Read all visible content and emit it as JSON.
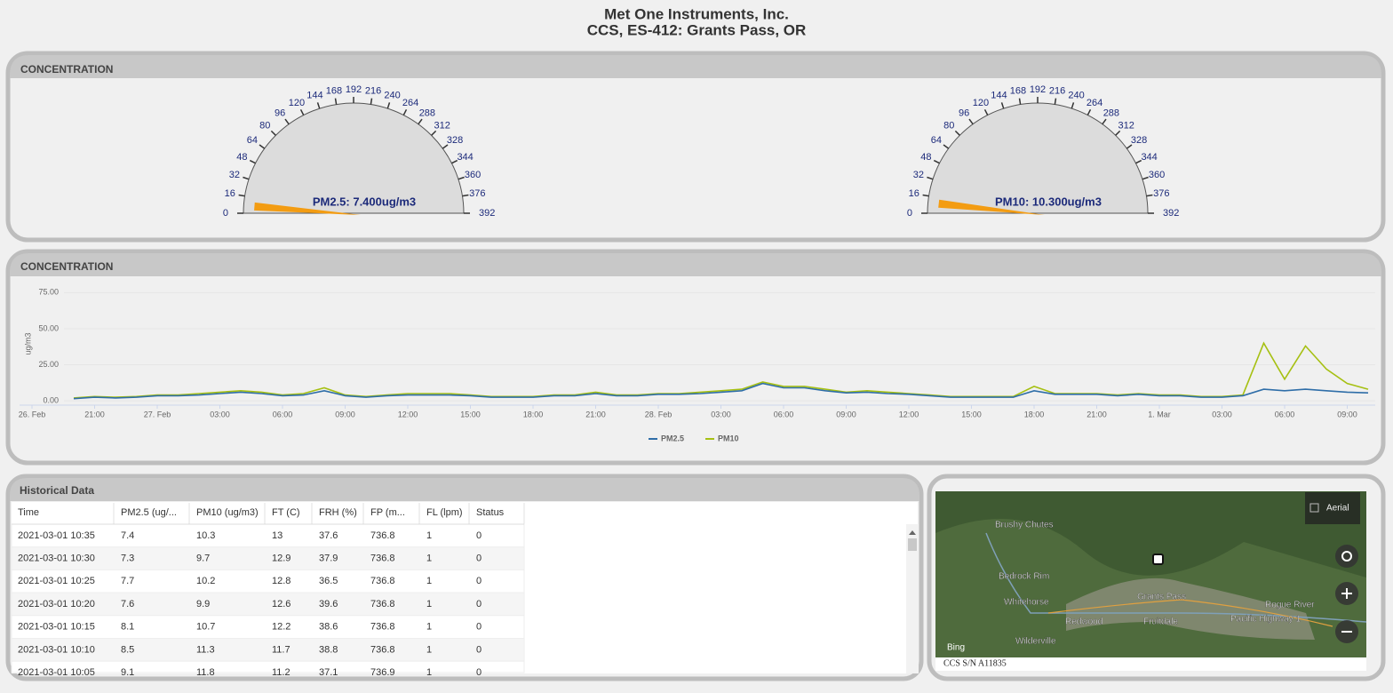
{
  "header": {
    "title": "Met One Instruments, Inc.",
    "subtitle": "CCS, ES-412: Grants Pass, OR"
  },
  "gauges_panel": {
    "title": "CONCENTRATION",
    "gauges": [
      {
        "label": "PM2.5: 7.400ug/m3",
        "value": 7.4,
        "color": "#f39c12",
        "ticks": [
          0,
          16,
          32,
          48,
          64,
          80,
          96,
          120,
          144,
          168,
          192,
          216,
          240,
          264,
          288,
          312,
          328,
          344,
          360,
          376,
          392
        ]
      },
      {
        "label": "PM10: 10.300ug/m3",
        "value": 10.3,
        "color": "#f39c12",
        "ticks": [
          0,
          16,
          32,
          48,
          64,
          80,
          96,
          120,
          144,
          168,
          192,
          216,
          240,
          264,
          288,
          312,
          328,
          344,
          360,
          376,
          392
        ]
      }
    ]
  },
  "trend_panel": {
    "title": "CONCENTRATION",
    "chart": {
      "type": "line",
      "y_label": "ug/m3",
      "ylim": [
        -3,
        82
      ],
      "yticks": [
        {
          "value": 0,
          "label": "0.00"
        },
        {
          "value": 25,
          "label": "25.00"
        },
        {
          "value": 50,
          "label": "50.00"
        },
        {
          "value": 75,
          "label": "75.00"
        }
      ],
      "x": [
        "26 Feb 18:00",
        "26 Feb 19:00",
        "26 Feb 20:00",
        "26 Feb 21:00",
        "26 Feb 22:00",
        "26 Feb 23:00",
        "27 Feb 00:00",
        "27 Feb 01:00",
        "27 Feb 02:00",
        "27 Feb 03:00",
        "27 Feb 04:00",
        "27 Feb 05:00",
        "27 Feb 06:00",
        "27 Feb 07:00",
        "27 Feb 08:00",
        "27 Feb 09:00",
        "27 Feb 10:00",
        "27 Feb 11:00",
        "27 Feb 12:00",
        "27 Feb 13:00",
        "27 Feb 14:00",
        "27 Feb 15:00",
        "27 Feb 16:00",
        "27 Feb 17:00",
        "27 Feb 18:00",
        "27 Feb 19:00",
        "27 Feb 20:00",
        "27 Feb 21:00",
        "27 Feb 22:00",
        "27 Feb 23:00",
        "28 Feb 00:00",
        "28 Feb 01:00",
        "28 Feb 02:00",
        "28 Feb 03:00",
        "28 Feb 04:00",
        "28 Feb 05:00",
        "28 Feb 06:00",
        "28 Feb 07:00",
        "28 Feb 08:00",
        "28 Feb 09:00",
        "28 Feb 10:00",
        "28 Feb 11:00",
        "28 Feb 12:00",
        "28 Feb 13:00",
        "28 Feb 14:00",
        "28 Feb 15:00",
        "28 Feb 16:00",
        "28 Feb 17:00",
        "28 Feb 18:00",
        "28 Feb 19:00",
        "28 Feb 20:00",
        "28 Feb 21:00",
        "28 Feb 22:00",
        "28 Feb 23:00",
        "1 Mar 00:00",
        "1 Mar 01:00",
        "1 Mar 02:00",
        "1 Mar 03:00",
        "1 Mar 04:00",
        "1 Mar 05:00",
        "1 Mar 06:00",
        "1 Mar 07:00",
        "1 Mar 08:00",
        "1 Mar 09:00",
        "1 Mar 10:00"
      ],
      "xticks": [
        {
          "value": "26 Feb 18:00",
          "label": "26. Feb"
        },
        {
          "value": "26 Feb 21:00",
          "label": "21:00"
        },
        {
          "value": "27 Feb 00:00",
          "label": "27. Feb"
        },
        {
          "value": "27 Feb 03:00",
          "label": "03:00"
        },
        {
          "value": "27 Feb 06:00",
          "label": "06:00"
        },
        {
          "value": "27 Feb 09:00",
          "label": "09:00"
        },
        {
          "value": "27 Feb 12:00",
          "label": "12:00"
        },
        {
          "value": "27 Feb 15:00",
          "label": "15:00"
        },
        {
          "value": "27 Feb 18:00",
          "label": "18:00"
        },
        {
          "value": "27 Feb 21:00",
          "label": "21:00"
        },
        {
          "value": "28 Feb 00:00",
          "label": "28. Feb"
        },
        {
          "value": "28 Feb 03:00",
          "label": "03:00"
        },
        {
          "value": "28 Feb 06:00",
          "label": "06:00"
        },
        {
          "value": "28 Feb 09:00",
          "label": "09:00"
        },
        {
          "value": "28 Feb 12:00",
          "label": "12:00"
        },
        {
          "value": "28 Feb 15:00",
          "label": "15:00"
        },
        {
          "value": "28 Feb 18:00",
          "label": "18:00"
        },
        {
          "value": "28 Feb 21:00",
          "label": "21:00"
        },
        {
          "value": "1 Mar 00:00",
          "label": "1. Mar"
        },
        {
          "value": "1 Mar 03:00",
          "label": "03:00"
        },
        {
          "value": "1 Mar 06:00",
          "label": "06:00"
        },
        {
          "value": "1 Mar 09:00",
          "label": "09:00"
        }
      ],
      "series": [
        {
          "name": "PM2.5",
          "color": "#2f6ea8",
          "values": [
            null,
            null,
            1.5,
            2.5,
            2,
            2.5,
            3.5,
            3.5,
            4,
            5,
            6,
            5,
            3.5,
            4,
            7,
            3.5,
            2.5,
            3.5,
            4,
            4,
            4,
            3.5,
            2.5,
            2.5,
            2.5,
            3.5,
            3.5,
            5,
            3.5,
            3.5,
            4.5,
            4.5,
            5,
            6,
            7,
            12,
            9,
            9,
            7,
            5.5,
            6,
            5,
            4.5,
            3.5,
            2.5,
            2.5,
            2.5,
            2.5,
            7,
            4.5,
            4.5,
            4.5,
            3.5,
            4.5,
            3.5,
            3.5,
            2.5,
            2.5,
            3.5,
            8,
            7,
            8,
            7,
            6,
            5.5
          ]
        },
        {
          "name": "PM10",
          "color": "#a6c012",
          "values": [
            null,
            null,
            2,
            3,
            2.5,
            3,
            4,
            4,
            5,
            6,
            7,
            6,
            4,
            5,
            9,
            4,
            3,
            4,
            5,
            5,
            5,
            4,
            3,
            3,
            3,
            4,
            4,
            6,
            4,
            4,
            5,
            5,
            6,
            7,
            8,
            13,
            10,
            10,
            8,
            6,
            7,
            6,
            5,
            4,
            3,
            3,
            3,
            3,
            10,
            5,
            5,
            5,
            4,
            5,
            4,
            4,
            3,
            3,
            4,
            40,
            15,
            38,
            22,
            12,
            8
          ]
        }
      ]
    }
  },
  "table": {
    "title": "Historical Data",
    "columns": [
      "Time",
      "PM2.5 (ug/...",
      "PM10 (ug/m3)",
      "FT (C)",
      "FRH (%)",
      "FP (m...",
      "FL (lpm)",
      "Status"
    ],
    "rows": [
      [
        "2021-03-01 10:35",
        "7.4",
        "10.3",
        "13",
        "37.6",
        "736.8",
        "1",
        "0"
      ],
      [
        "2021-03-01 10:30",
        "7.3",
        "9.7",
        "12.9",
        "37.9",
        "736.8",
        "1",
        "0"
      ],
      [
        "2021-03-01 10:25",
        "7.7",
        "10.2",
        "12.8",
        "36.5",
        "736.8",
        "1",
        "0"
      ],
      [
        "2021-03-01 10:20",
        "7.6",
        "9.9",
        "12.6",
        "39.6",
        "736.8",
        "1",
        "0"
      ],
      [
        "2021-03-01 10:15",
        "8.1",
        "10.7",
        "12.2",
        "38.6",
        "736.8",
        "1",
        "0"
      ],
      [
        "2021-03-01 10:10",
        "8.5",
        "11.3",
        "11.7",
        "38.8",
        "736.8",
        "1",
        "0"
      ],
      [
        "2021-03-01 10:05",
        "9.1",
        "11.8",
        "11.2",
        "37.1",
        "736.9",
        "1",
        "0"
      ]
    ]
  },
  "map": {
    "aerial": "Aerial",
    "places": [
      "Brushy Chutes",
      "Bedrock Rim",
      "Whitehorse",
      "Redwood",
      "Grants Pass",
      "Fruitdale",
      "Rogue River",
      "Wilderville",
      "Pacific Highway 1"
    ],
    "brand": "Bing",
    "caption": "CCS S/N A11835"
  }
}
